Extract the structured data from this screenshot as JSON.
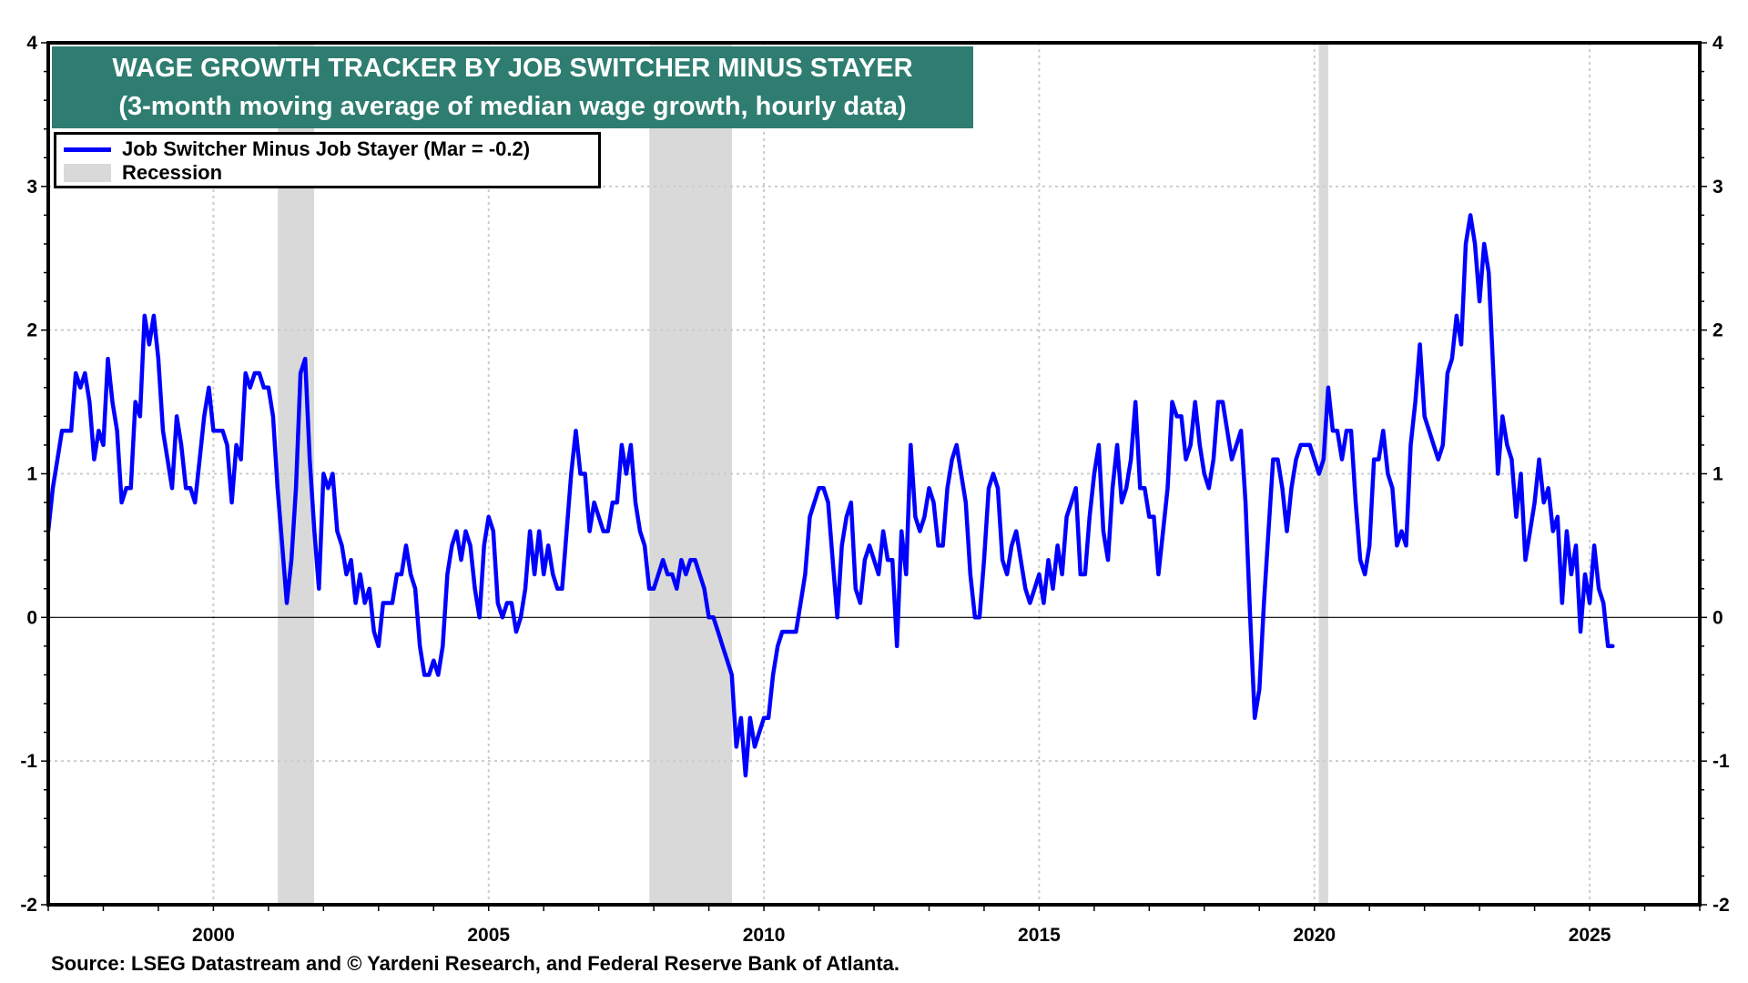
{
  "chart_data": {
    "type": "line",
    "title": "WAGE GROWTH TRACKER BY JOB SWITCHER MINUS STAYER",
    "subtitle": "(3-month moving average of median wage growth, hourly data)",
    "xlabel": "",
    "ylabel": "",
    "xlim": [
      1997.0,
      2027.0
    ],
    "ylim": [
      -2,
      4
    ],
    "y_ticks": [
      -2,
      -1,
      0,
      1,
      2,
      3,
      4
    ],
    "x_ticks": [
      2000,
      2005,
      2010,
      2015,
      2020,
      2025
    ],
    "x_tick_labels": [
      "2000",
      "2005",
      "2010",
      "2015",
      "2020",
      "2025"
    ],
    "y_tick_labels": [
      "-2",
      "-1",
      "0",
      "1",
      "2",
      "3",
      "4"
    ],
    "grid": true,
    "legend_position": "top-left",
    "legend": [
      {
        "label": "Job Switcher Minus Job Stayer (Mar = -0.2)",
        "type": "line",
        "color": "#0000ff"
      },
      {
        "label": "Recession",
        "type": "band",
        "color": "#d9d9d9"
      }
    ],
    "recessions": [
      {
        "start": 2001.17,
        "end": 2001.83
      },
      {
        "start": 2007.92,
        "end": 2009.42
      },
      {
        "start": 2020.08,
        "end": 2020.25
      }
    ],
    "series": [
      {
        "name": "Job Switcher Minus Job Stayer",
        "color": "#0000ff",
        "start": 1997.0,
        "step_months": 1,
        "values": [
          0.6,
          0.9,
          1.1,
          1.3,
          1.3,
          1.3,
          1.7,
          1.6,
          1.7,
          1.5,
          1.1,
          1.3,
          1.2,
          1.8,
          1.5,
          1.3,
          0.8,
          0.9,
          0.9,
          1.5,
          1.4,
          2.1,
          1.9,
          2.1,
          1.8,
          1.3,
          1.1,
          0.9,
          1.4,
          1.2,
          0.9,
          0.9,
          0.8,
          1.1,
          1.4,
          1.6,
          1.3,
          1.3,
          1.3,
          1.2,
          0.8,
          1.2,
          1.1,
          1.7,
          1.6,
          1.7,
          1.7,
          1.6,
          1.6,
          1.4,
          0.9,
          0.5,
          0.1,
          0.4,
          0.9,
          1.7,
          1.8,
          1.1,
          0.6,
          0.2,
          1.0,
          0.9,
          1.0,
          0.6,
          0.5,
          0.3,
          0.4,
          0.1,
          0.3,
          0.1,
          0.2,
          -0.1,
          -0.2,
          0.1,
          0.1,
          0.1,
          0.3,
          0.3,
          0.5,
          0.3,
          0.2,
          -0.2,
          -0.4,
          -0.4,
          -0.3,
          -0.4,
          -0.2,
          0.3,
          0.5,
          0.6,
          0.4,
          0.6,
          0.5,
          0.2,
          0.0,
          0.5,
          0.7,
          0.6,
          0.1,
          0.0,
          0.1,
          0.1,
          -0.1,
          0.0,
          0.2,
          0.6,
          0.3,
          0.6,
          0.3,
          0.5,
          0.3,
          0.2,
          0.2,
          0.6,
          1.0,
          1.3,
          1.0,
          1.0,
          0.6,
          0.8,
          0.7,
          0.6,
          0.6,
          0.8,
          0.8,
          1.2,
          1.0,
          1.2,
          0.8,
          0.6,
          0.5,
          0.2,
          0.2,
          0.3,
          0.4,
          0.3,
          0.3,
          0.2,
          0.4,
          0.3,
          0.4,
          0.4,
          0.3,
          0.2,
          0.0,
          0.0,
          -0.1,
          -0.2,
          -0.3,
          -0.4,
          -0.9,
          -0.7,
          -1.1,
          -0.7,
          -0.9,
          -0.8,
          -0.7,
          -0.7,
          -0.4,
          -0.2,
          -0.1,
          -0.1,
          -0.1,
          -0.1,
          0.1,
          0.3,
          0.7,
          0.8,
          0.9,
          0.9,
          0.8,
          0.4,
          0.0,
          0.5,
          0.7,
          0.8,
          0.2,
          0.1,
          0.4,
          0.5,
          0.4,
          0.3,
          0.6,
          0.4,
          0.4,
          -0.2,
          0.6,
          0.3,
          1.2,
          0.7,
          0.6,
          0.7,
          0.9,
          0.8,
          0.5,
          0.5,
          0.9,
          1.1,
          1.2,
          1.0,
          0.8,
          0.3,
          0.0,
          0.0,
          0.4,
          0.9,
          1.0,
          0.9,
          0.4,
          0.3,
          0.5,
          0.6,
          0.4,
          0.2,
          0.1,
          0.2,
          0.3,
          0.1,
          0.4,
          0.2,
          0.5,
          0.3,
          0.7,
          0.8,
          0.9,
          0.3,
          0.3,
          0.7,
          1.0,
          1.2,
          0.6,
          0.4,
          0.9,
          1.2,
          0.8,
          0.9,
          1.1,
          1.5,
          0.9,
          0.9,
          0.7,
          0.7,
          0.3,
          0.6,
          0.9,
          1.5,
          1.4,
          1.4,
          1.1,
          1.2,
          1.5,
          1.2,
          1.0,
          0.9,
          1.1,
          1.5,
          1.5,
          1.3,
          1.1,
          1.2,
          1.3,
          0.8,
          0.0,
          -0.7,
          -0.5,
          0.1,
          0.6,
          1.1,
          1.1,
          0.9,
          0.6,
          0.9,
          1.1,
          1.2,
          1.2,
          1.2,
          1.1,
          1.0,
          1.1,
          1.6,
          1.3,
          1.3,
          1.1,
          1.3,
          1.3,
          0.8,
          0.4,
          0.3,
          0.5,
          1.1,
          1.1,
          1.3,
          1.0,
          0.9,
          0.5,
          0.6,
          0.5,
          1.2,
          1.5,
          1.9,
          1.4,
          1.3,
          1.2,
          1.1,
          1.2,
          1.7,
          1.8,
          2.1,
          1.9,
          2.6,
          2.8,
          2.6,
          2.2,
          2.6,
          2.4,
          1.7,
          1.0,
          1.4,
          1.2,
          1.1,
          0.7,
          1.0,
          0.4,
          0.6,
          0.8,
          1.1,
          0.8,
          0.9,
          0.6,
          0.7,
          0.1,
          0.6,
          0.3,
          0.5,
          -0.1,
          0.3,
          0.1,
          0.5,
          0.2,
          0.1,
          -0.2,
          -0.2
        ]
      }
    ]
  },
  "source": "Source: LSEG Datastream and © Yardeni Research, and Federal Reserve Bank of Atlanta."
}
